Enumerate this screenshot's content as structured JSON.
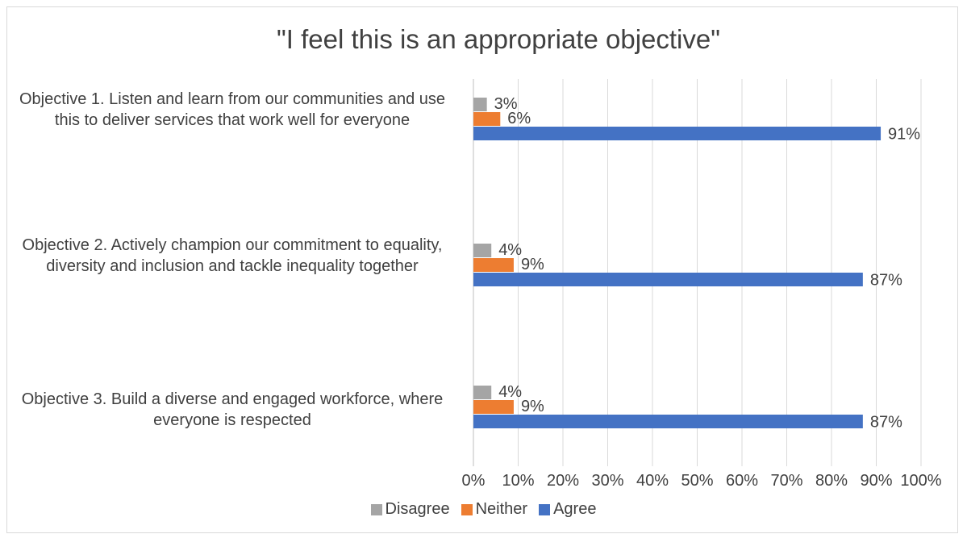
{
  "chart_data": {
    "type": "bar",
    "orientation": "horizontal",
    "title": "\"I feel this is an appropriate objective\"",
    "categories": [
      "Objective 1. Listen and learn from our communities and use this to deliver services that work well for everyone",
      "Objective 2. Actively champion our commitment to equality, diversity and inclusion and tackle inequality together",
      "Objective 3. Build a diverse and engaged workforce, where everyone is respected"
    ],
    "series": [
      {
        "name": "Disagree",
        "color": "#a5a5a5",
        "values": [
          3,
          4,
          4
        ],
        "labels": [
          "3%",
          "4%",
          "4%"
        ]
      },
      {
        "name": "Neither",
        "color": "#ed7d31",
        "values": [
          6,
          9,
          9
        ],
        "labels": [
          "6%",
          "9%",
          "9%"
        ]
      },
      {
        "name": "Agree",
        "color": "#4472c4",
        "values": [
          91,
          87,
          87
        ],
        "labels": [
          "91%",
          "87%",
          "87%"
        ]
      }
    ],
    "xlim": [
      0,
      100
    ],
    "x_ticks": [
      "0%",
      "10%",
      "20%",
      "30%",
      "40%",
      "50%",
      "60%",
      "70%",
      "80%",
      "90%",
      "100%"
    ],
    "grid": true,
    "legend_position": "bottom"
  }
}
